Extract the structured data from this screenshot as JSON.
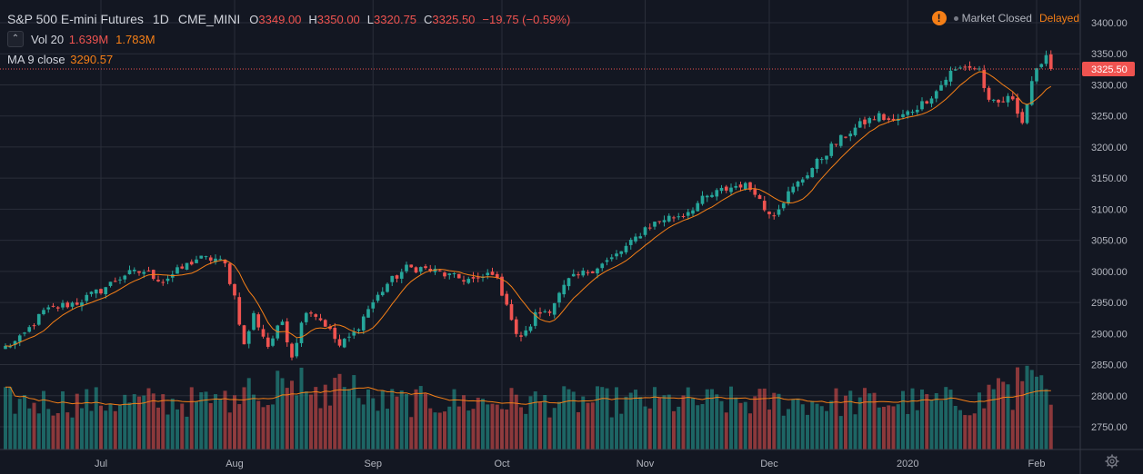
{
  "header": {
    "symbol": "S&P 500 E-mini Futures",
    "interval": "1D",
    "exchange": "CME_MINI",
    "o_label": "O",
    "o_value": "3349.00",
    "h_label": "H",
    "h_value": "3350.00",
    "l_label": "L",
    "l_value": "3320.75",
    "c_label": "C",
    "c_value": "3325.50",
    "change": "−19.75 (−0.59%)"
  },
  "vol_indicator": {
    "label": "Vol 20",
    "v1": "1.639M",
    "v2": "1.783M"
  },
  "ma_indicator": {
    "label": "MA 9 close",
    "value": "3290.57"
  },
  "status": {
    "warning": "!",
    "market": "Market Closed",
    "delayed": "Delayed"
  },
  "price_tag": "3325.50",
  "colors": {
    "up": "#26a69a",
    "down": "#ef5350",
    "ma": "#f57f17",
    "vol_ma": "#f57f17",
    "bg": "#131722",
    "grid": "#2a2e39",
    "text": "#b2b5be"
  },
  "chart_data": {
    "type": "candlestick",
    "y_ticks": [
      2750,
      2800,
      2850,
      2900,
      2950,
      3000,
      3050,
      3100,
      3150,
      3200,
      3250,
      3300,
      3350,
      3400
    ],
    "y_tick_labels": [
      "2750.00",
      "2800.00",
      "2850.00",
      "2900.00",
      "2950.00",
      "3000.00",
      "3050.00",
      "3100.00",
      "3150.00",
      "3200.00",
      "3250.00",
      "3300.00",
      "3350.00",
      "3400.00"
    ],
    "ylim": [
      2720,
      3425
    ],
    "x_month_labels": [
      {
        "label": "Jul",
        "index": 20
      },
      {
        "label": "Aug",
        "index": 48
      },
      {
        "label": "Sep",
        "index": 77
      },
      {
        "label": "Oct",
        "index": 104
      },
      {
        "label": "Nov",
        "index": 134
      },
      {
        "label": "Dec",
        "index": 160
      },
      {
        "label": "2020",
        "index": 189
      },
      {
        "label": "Feb",
        "index": 216
      }
    ],
    "anchors": [
      [
        0,
        2878
      ],
      [
        3,
        2890
      ],
      [
        8,
        2935
      ],
      [
        12,
        2945
      ],
      [
        15,
        2950
      ],
      [
        20,
        2970
      ],
      [
        25,
        2995
      ],
      [
        29,
        3000
      ],
      [
        33,
        2985
      ],
      [
        37,
        3005
      ],
      [
        40,
        3020
      ],
      [
        44,
        3020
      ],
      [
        46,
        3010
      ],
      [
        48,
        2960
      ],
      [
        50,
        2880
      ],
      [
        52,
        2930
      ],
      [
        55,
        2880
      ],
      [
        58,
        2920
      ],
      [
        60,
        2865
      ],
      [
        63,
        2940
      ],
      [
        65,
        2930
      ],
      [
        67,
        2915
      ],
      [
        70,
        2880
      ],
      [
        73,
        2900
      ],
      [
        76,
        2940
      ],
      [
        80,
        2980
      ],
      [
        84,
        3005
      ],
      [
        87,
        3005
      ],
      [
        90,
        3000
      ],
      [
        94,
        2990
      ],
      [
        99,
        2985
      ],
      [
        102,
        3000
      ],
      [
        105,
        2950
      ],
      [
        107,
        2895
      ],
      [
        109,
        2900
      ],
      [
        111,
        2930
      ],
      [
        114,
        2940
      ],
      [
        118,
        2985
      ],
      [
        122,
        3000
      ],
      [
        127,
        3020
      ],
      [
        131,
        3045
      ],
      [
        134,
        3070
      ],
      [
        138,
        3085
      ],
      [
        142,
        3092
      ],
      [
        146,
        3115
      ],
      [
        150,
        3130
      ],
      [
        154,
        3140
      ],
      [
        157,
        3130
      ],
      [
        159,
        3100
      ],
      [
        161,
        3095
      ],
      [
        164,
        3125
      ],
      [
        167,
        3150
      ],
      [
        170,
        3175
      ],
      [
        173,
        3200
      ],
      [
        177,
        3225
      ],
      [
        180,
        3240
      ],
      [
        183,
        3250
      ],
      [
        186,
        3240
      ],
      [
        189,
        3255
      ],
      [
        192,
        3270
      ],
      [
        195,
        3290
      ],
      [
        198,
        3320
      ],
      [
        201,
        3330
      ],
      [
        204,
        3325
      ],
      [
        206,
        3270
      ],
      [
        208,
        3270
      ],
      [
        211,
        3280
      ],
      [
        213,
        3240
      ],
      [
        215,
        3300
      ],
      [
        217,
        3340
      ],
      [
        218,
        3349
      ],
      [
        219,
        3325.5
      ]
    ],
    "n_bars": 220,
    "ma_period": 9,
    "volume_ylim_note": "volume bars in bottom band; no volume axis printed"
  }
}
